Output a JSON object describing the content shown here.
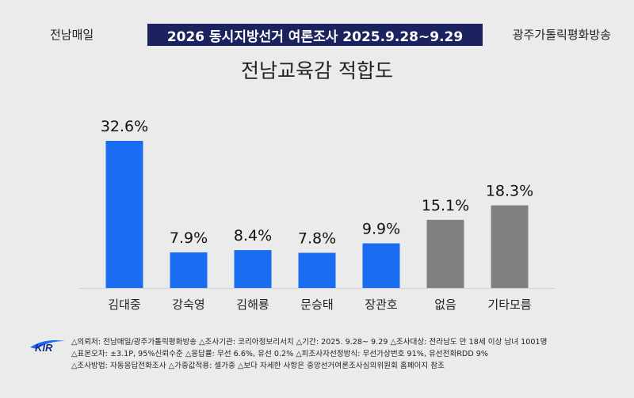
{
  "header": {
    "left": "전남매일",
    "banner": "2026 동시지방선거 여론조사 2025.9.28~9.29",
    "right": "광주가톨릭평화방송"
  },
  "chart_data": {
    "type": "bar",
    "title": "전남교육감 적합도",
    "categories": [
      "김대중",
      "강숙영",
      "김해룡",
      "문승태",
      "장관호",
      "없음",
      "기타모름"
    ],
    "values": [
      32.6,
      7.9,
      8.4,
      7.8,
      9.9,
      15.1,
      18.3
    ],
    "labels": [
      "32.6%",
      "7.9%",
      "8.4%",
      "7.8%",
      "9.9%",
      "15.1%",
      "18.3%"
    ],
    "colors": [
      "#1a6cf0",
      "#1a6cf0",
      "#1a6cf0",
      "#1a6cf0",
      "#1a6cf0",
      "#808080",
      "#808080"
    ],
    "ylim": [
      0,
      32.6
    ],
    "xlabel": "",
    "ylabel": "",
    "grid": false
  },
  "footer": {
    "logo_text": "KIR",
    "line1": "△의뢰처: 전남매일/광주가톨릭평화방송 △조사기관: 코리아정보리서치 △기간: 2025. 9.28~ 9.29 △조사대상: 전라남도 만 18세 이상 남녀 1001명",
    "line2": "△표본오차: ±3.1P, 95%신뢰수준 △응답률: 무선 6.6%, 유선 0.2% △피조사자선정방식: 무선가상번호 91%, 유선전화RDD 9%",
    "line3": "△조사방법: 자동응답전화조사 △가중값적용: 셀가중 △보다 자세한 사항은 중앙선거여론조사심의위원회 홈페이지 참조"
  }
}
